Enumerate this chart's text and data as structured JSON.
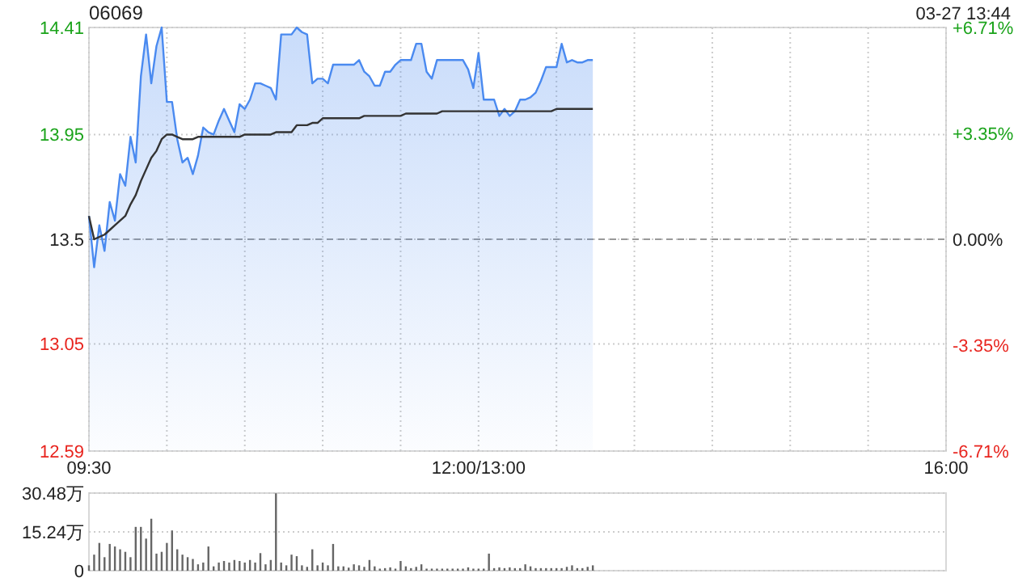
{
  "chart_data": [
    {
      "type": "area",
      "title": "06069",
      "subtitle": "03-27 13:44",
      "categories": [
        "09:30",
        null,
        null,
        null,
        null,
        null,
        null,
        null,
        null,
        null,
        null,
        null,
        null,
        null,
        null,
        null,
        null,
        null,
        null,
        null,
        null,
        null,
        null,
        null,
        null,
        null,
        null,
        null,
        null,
        null,
        null,
        null,
        null,
        null,
        null,
        null,
        null,
        null,
        null,
        null,
        null,
        null,
        null,
        null,
        null,
        null,
        null,
        null,
        null,
        null,
        null,
        null,
        null,
        null,
        null,
        null,
        null,
        null,
        null,
        null,
        null,
        null,
        null,
        null,
        null,
        null,
        null,
        null,
        null,
        null,
        null,
        null,
        null,
        null,
        null,
        "12:00/13:00",
        null,
        null,
        null,
        null,
        null,
        null,
        null,
        null,
        null,
        null,
        null,
        null,
        null,
        null,
        null,
        null,
        null,
        null,
        null,
        null,
        null,
        null,
        null,
        null,
        null,
        null,
        null,
        null,
        null,
        null,
        null,
        null,
        null,
        null,
        null,
        null,
        null,
        null,
        null,
        null,
        null,
        null,
        null,
        null,
        null,
        null,
        null,
        null,
        null,
        null,
        null,
        null,
        null,
        null,
        null,
        null,
        null,
        null,
        null,
        null,
        null,
        null,
        null,
        null,
        null,
        null,
        null,
        null,
        null,
        null,
        null,
        null,
        null,
        null,
        null,
        null,
        null,
        null,
        null,
        null,
        null,
        null,
        null,
        null,
        null,
        null,
        null,
        null,
        null,
        "16:00"
      ],
      "ylim": [
        12.59,
        14.41
      ],
      "yticks": [
        12.59,
        13.05,
        13.5,
        13.95,
        14.41
      ],
      "y2lim": [
        -6.71,
        6.71
      ],
      "y2ticks": [
        {
          "value": -6.71,
          "label": "-6.71%"
        },
        {
          "value": -3.35,
          "label": "-3.35%"
        },
        {
          "value": 0,
          "label": "0.00%"
        },
        {
          "value": 3.35,
          "label": "+3.35%"
        },
        {
          "value": 6.71,
          "label": "+6.71%"
        }
      ],
      "grid": true,
      "ref_lines": [
        {
          "axis": "y",
          "value": 13.5,
          "color": "#999999",
          "line_style": "dashed"
        }
      ],
      "series": [
        {
          "color": "#4a8af0",
          "values": [
            13.6,
            13.38,
            13.56,
            13.45,
            13.66,
            13.58,
            13.78,
            13.73,
            13.94,
            13.83,
            14.2,
            14.38,
            14.17,
            14.33,
            14.41,
            14.09,
            14.09,
            13.93,
            13.83,
            13.85,
            13.78,
            13.86,
            13.98,
            13.96,
            13.95,
            14.01,
            14.06,
            14.01,
            13.96,
            14.08,
            14.06,
            14.1,
            14.17,
            14.17,
            14.16,
            14.15,
            14.1,
            14.38,
            14.38,
            14.38,
            14.41,
            14.39,
            14.38,
            14.17,
            14.19,
            14.19,
            14.17,
            14.25,
            14.25,
            14.25,
            14.25,
            14.25,
            14.27,
            14.22,
            14.2,
            14.16,
            14.16,
            14.22,
            14.22,
            14.25,
            14.27,
            14.27,
            14.27,
            14.34,
            14.34,
            14.22,
            14.19,
            14.27,
            14.27,
            14.27,
            14.27,
            14.27,
            14.27,
            14.23,
            14.15,
            14.3,
            14.1,
            14.1,
            14.1,
            14.03,
            14.06,
            14.03,
            14.05,
            14.1,
            14.1,
            14.11,
            14.13,
            14.18,
            14.24,
            14.24,
            14.24,
            14.34,
            14.26,
            14.27,
            14.26,
            14.26,
            14.27,
            14.27,
            null,
            null,
            null,
            null,
            null,
            null,
            null,
            null,
            null,
            null,
            null,
            null,
            null,
            null,
            null,
            null,
            null,
            null,
            null,
            null,
            null,
            null,
            null,
            null,
            null,
            null,
            null,
            null,
            null,
            null,
            null,
            null,
            null,
            null,
            null,
            null,
            null,
            null,
            null,
            null,
            null,
            null,
            null,
            null,
            null,
            null,
            null,
            null,
            null,
            null,
            null,
            null,
            null,
            null,
            null,
            null,
            null,
            null,
            null,
            null,
            null,
            null,
            null,
            null,
            null,
            null,
            null,
            null
          ]
        },
        {
          "type": "line",
          "color": "#333333",
          "values": [
            13.6,
            13.5,
            13.51,
            13.52,
            13.54,
            13.56,
            13.58,
            13.6,
            13.65,
            13.69,
            13.75,
            13.8,
            13.85,
            13.88,
            13.93,
            13.95,
            13.95,
            13.94,
            13.93,
            13.93,
            13.93,
            13.94,
            13.94,
            13.94,
            13.94,
            13.94,
            13.94,
            13.94,
            13.94,
            13.94,
            13.95,
            13.95,
            13.95,
            13.95,
            13.95,
            13.95,
            13.96,
            13.96,
            13.96,
            13.96,
            13.99,
            13.99,
            13.99,
            14.0,
            14.0,
            14.02,
            14.02,
            14.02,
            14.02,
            14.02,
            14.02,
            14.02,
            14.02,
            14.03,
            14.03,
            14.03,
            14.03,
            14.03,
            14.03,
            14.03,
            14.03,
            14.04,
            14.04,
            14.04,
            14.04,
            14.04,
            14.04,
            14.04,
            14.05,
            14.05,
            14.05,
            14.05,
            14.05,
            14.05,
            14.05,
            14.05,
            14.05,
            14.05,
            14.05,
            14.05,
            14.05,
            14.05,
            14.05,
            14.05,
            14.05,
            14.05,
            14.05,
            14.05,
            14.05,
            14.05,
            14.06,
            14.06,
            14.06,
            14.06,
            14.06,
            14.06,
            14.06,
            14.06,
            null,
            null,
            null,
            null,
            null,
            null,
            null,
            null,
            null,
            null,
            null,
            null,
            null,
            null,
            null,
            null,
            null,
            null,
            null,
            null,
            null,
            null,
            null,
            null,
            null,
            null,
            null,
            null,
            null,
            null,
            null,
            null,
            null,
            null,
            null,
            null,
            null,
            null,
            null,
            null,
            null,
            null,
            null,
            null,
            null,
            null,
            null,
            null,
            null,
            null,
            null,
            null,
            null,
            null,
            null,
            null,
            null,
            null,
            null,
            null,
            null,
            null,
            null,
            null,
            null,
            null,
            null,
            null
          ]
        }
      ]
    },
    {
      "type": "bar",
      "color": "#666666",
      "tick_labels": "y",
      "grid": "y",
      "categories": [
        null,
        null,
        null,
        null,
        null,
        null,
        null,
        null,
        null,
        null,
        null,
        null,
        null,
        null,
        null,
        null,
        null,
        null,
        null,
        null,
        null,
        null,
        null,
        null,
        null,
        null,
        null,
        null,
        null,
        null,
        null,
        null,
        null,
        null,
        null,
        null,
        null,
        null,
        null,
        null,
        null,
        null,
        null,
        null,
        null,
        null,
        null,
        null,
        null,
        null,
        null,
        null,
        null,
        null,
        null,
        null,
        null,
        null,
        null,
        null,
        null,
        null,
        null,
        null,
        null,
        null,
        null,
        null,
        null,
        null,
        null,
        null,
        null,
        null,
        null,
        null,
        null,
        null,
        null,
        null,
        null,
        null,
        null,
        null,
        null,
        null,
        null,
        null,
        null,
        null,
        null,
        null,
        null,
        null,
        null,
        null,
        null,
        null,
        null,
        null,
        null,
        null,
        null,
        null,
        null,
        null,
        null,
        null,
        null,
        null,
        null,
        null,
        null,
        null,
        null,
        null,
        null,
        null,
        null,
        null,
        null,
        null,
        null,
        null,
        null,
        null,
        null,
        null,
        null,
        null,
        null,
        null,
        null,
        null,
        null,
        null,
        null,
        null,
        null,
        null,
        null,
        null,
        null,
        null,
        null,
        null,
        null,
        null,
        null,
        null,
        null,
        null,
        null,
        null,
        null,
        null,
        null,
        null,
        null,
        null,
        null,
        null,
        null,
        null,
        null,
        null
      ],
      "ylim": [
        0,
        30.48
      ],
      "yticks": [
        0,
        {
          "value": 15.24,
          "label": "15.24万"
        },
        {
          "value": 30.48,
          "label": "30.48万"
        }
      ],
      "values": [
        2.1,
        6.3,
        10.9,
        5.3,
        10.5,
        9.5,
        8.4,
        7.4,
        5.3,
        17.2,
        17.2,
        12.6,
        20.4,
        6.7,
        7.4,
        10.9,
        15.8,
        8.4,
        6.3,
        5.3,
        4.6,
        2.5,
        3.2,
        9.5,
        1.7,
        3.2,
        3.8,
        3.2,
        4.2,
        3.8,
        3.2,
        4.2,
        3.2,
        6.9,
        2.5,
        4.2,
        30.4,
        3.2,
        2.1,
        6.3,
        5.7,
        2.1,
        1.5,
        8.4,
        2.1,
        3.2,
        2.1,
        10.5,
        1.7,
        1.7,
        1.2,
        2.5,
        2.1,
        1.5,
        4.2,
        1.7,
        0.8,
        1.0,
        1.3,
        0.8,
        3.8,
        1.7,
        1.0,
        1.5,
        2.5,
        0.8,
        0.8,
        0.8,
        0.8,
        0.8,
        0.8,
        0.8,
        0.8,
        1.3,
        0.8,
        0.8,
        0.8,
        6.7,
        1.0,
        1.3,
        1.0,
        1.3,
        1.0,
        1.0,
        2.5,
        1.7,
        1.0,
        1.0,
        1.0,
        1.0,
        1.0,
        1.0,
        1.5,
        2.1,
        1.0,
        1.0,
        1.5,
        2.1,
        null,
        null,
        null,
        null,
        null,
        null,
        null,
        null,
        null,
        null,
        null,
        null,
        null,
        null,
        null,
        null,
        null,
        null,
        null,
        null,
        null,
        null,
        null,
        null,
        null,
        null,
        null,
        null,
        null,
        null,
        null,
        null,
        null,
        null,
        null,
        null,
        null,
        null,
        null,
        null,
        null,
        null,
        null,
        null,
        null,
        null,
        null,
        null,
        null,
        null,
        null,
        null,
        null,
        null,
        null,
        null,
        null,
        null,
        null,
        null,
        null,
        null,
        null,
        null,
        null,
        null,
        null,
        null
      ]
    }
  ]
}
